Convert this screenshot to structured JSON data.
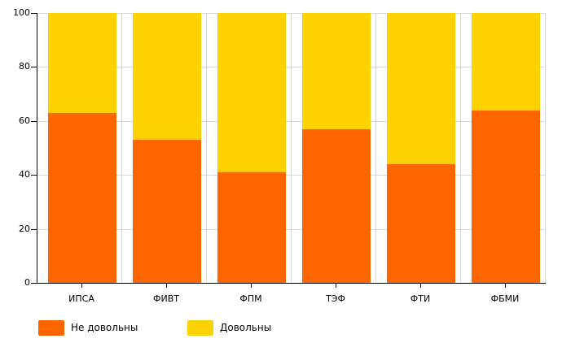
{
  "chart_data": {
    "type": "bar",
    "stacked": true,
    "title": "",
    "xlabel": "",
    "ylabel": "",
    "categories": [
      "ИПСА",
      "ФИВТ",
      "ФПМ",
      "ТЭФ",
      "ФТИ",
      "ФБМИ"
    ],
    "series": [
      {
        "name": "Не довольны",
        "color": "#FF6600",
        "values": [
          63,
          53,
          41,
          57,
          44,
          64
        ]
      },
      {
        "name": "Довольны",
        "color": "#FCD202",
        "values": [
          37,
          47,
          59,
          43,
          56,
          36
        ]
      }
    ],
    "ylim": [
      0,
      100
    ],
    "yticks": [
      0,
      20,
      40,
      60,
      80,
      100
    ],
    "grid": true,
    "legend_position": "bottom",
    "style": {
      "grid_color": "#d9d9d9",
      "axis_color": "#000000",
      "text_color": "#000000",
      "background": "#ffffff"
    }
  }
}
